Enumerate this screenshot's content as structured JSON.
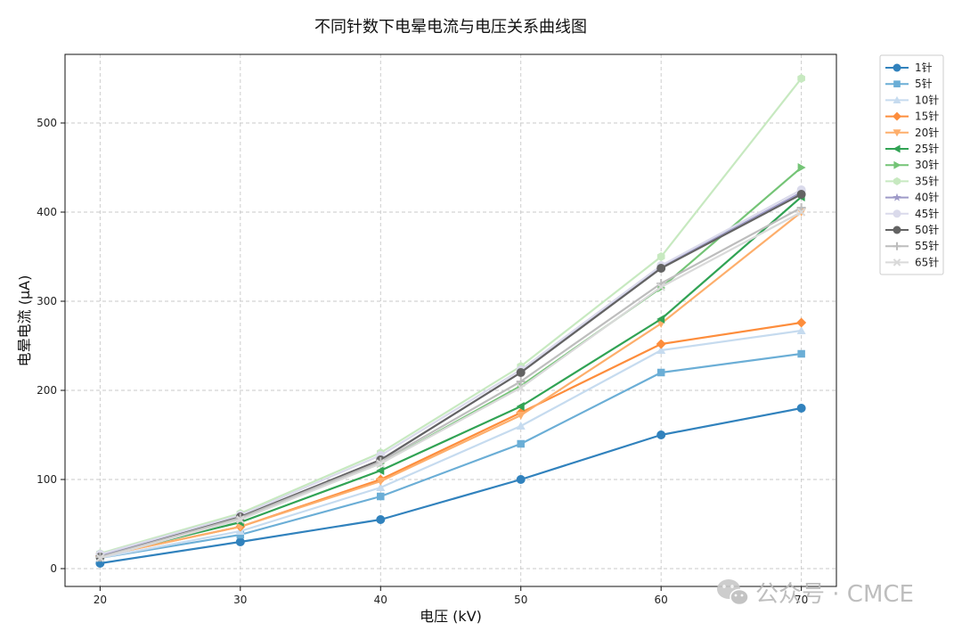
{
  "chart_data": {
    "type": "line",
    "title": "不同针数下电晕电流与电压关系曲线图",
    "xlabel": "电压 (kV)",
    "ylabel": "电晕电流 (μA)",
    "x": [
      20,
      30,
      40,
      50,
      60,
      70
    ],
    "xticks": [
      20,
      30,
      40,
      50,
      60,
      70
    ],
    "yticks": [
      0,
      100,
      200,
      300,
      400,
      500
    ],
    "xlim": [
      17.5,
      72.5
    ],
    "ylim": [
      -20,
      577
    ],
    "grid": true,
    "legend_position": "outside-top-right",
    "series": [
      {
        "name": "1针",
        "color": "#3182bd",
        "marker": "circle",
        "values": [
          6,
          30,
          55,
          100,
          150,
          180
        ]
      },
      {
        "name": "5针",
        "color": "#6baed6",
        "marker": "square",
        "values": [
          12,
          38,
          81,
          140,
          220,
          241
        ]
      },
      {
        "name": "10针",
        "color": "#c6dbef",
        "marker": "triangle-up",
        "values": [
          12,
          42,
          91,
          160,
          245,
          267
        ]
      },
      {
        "name": "15针",
        "color": "#fd8d3c",
        "marker": "diamond",
        "values": [
          14,
          47,
          100,
          175,
          252,
          276
        ]
      },
      {
        "name": "20针",
        "color": "#fdae6b",
        "marker": "triangle-down",
        "values": [
          14,
          47,
          98,
          172,
          275,
          400
        ]
      },
      {
        "name": "25针",
        "color": "#31a354",
        "marker": "triangle-left",
        "values": [
          14,
          52,
          110,
          182,
          280,
          417
        ]
      },
      {
        "name": "30针",
        "color": "#74c476",
        "marker": "triangle-right",
        "values": [
          15,
          56,
          118,
          205,
          315,
          450
        ]
      },
      {
        "name": "35针",
        "color": "#c7e9c0",
        "marker": "hexagon",
        "values": [
          17,
          62,
          130,
          227,
          350,
          550
        ]
      },
      {
        "name": "40针",
        "color": "#9e9ac8",
        "marker": "star",
        "values": [
          14,
          58,
          122,
          220,
          338,
          422
        ]
      },
      {
        "name": "45针",
        "color": "#dadaeb",
        "marker": "circle",
        "values": [
          16,
          60,
          127,
          223,
          340,
          425
        ]
      },
      {
        "name": "50针",
        "color": "#636363",
        "marker": "circle",
        "values": [
          13,
          58,
          122,
          220,
          337,
          420
        ]
      },
      {
        "name": "55针",
        "color": "#bdbdbd",
        "marker": "plus",
        "values": [
          13,
          57,
          120,
          210,
          320,
          405
        ]
      },
      {
        "name": "65针",
        "color": "#d9d9d9",
        "marker": "x",
        "values": [
          12,
          55,
          118,
          203,
          316,
          400
        ]
      }
    ]
  },
  "watermark": {
    "text": "公众号 · CMCE",
    "icon": "wechat-icon"
  }
}
